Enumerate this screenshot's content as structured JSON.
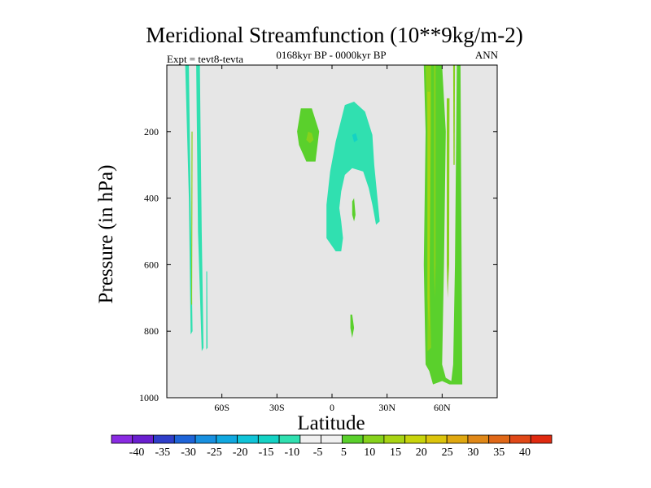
{
  "chart_data": {
    "type": "contour",
    "title": "Meridional Streamfunction (10**9kg/m-2)",
    "subtitle_left": "Expt = tevt8-tevta",
    "subtitle_center": "0168kyr BP - 0000kyr BP",
    "subtitle_right": "ANN",
    "xlabel": "Latitude",
    "ylabel": "Pressure (in hPa)",
    "xlim": [
      -90,
      90
    ],
    "ylim": [
      0,
      1000
    ],
    "y_inverted": true,
    "xticks": [
      {
        "value": -60,
        "label": "60S"
      },
      {
        "value": -30,
        "label": "30S"
      },
      {
        "value": 0,
        "label": "0"
      },
      {
        "value": 30,
        "label": "30N"
      },
      {
        "value": 60,
        "label": "60N"
      }
    ],
    "yticks": [
      {
        "value": 200,
        "label": "200"
      },
      {
        "value": 400,
        "label": "400"
      },
      {
        "value": 600,
        "label": "600"
      },
      {
        "value": 800,
        "label": "800"
      },
      {
        "value": 1000,
        "label": "1000"
      }
    ],
    "background_color": "#e6e6e6",
    "colorbar": {
      "colors": [
        "#8a2be2",
        "#6a1fd0",
        "#2f3ec9",
        "#1e64d8",
        "#1890e0",
        "#10a8e0",
        "#10c4d8",
        "#14d2c4",
        "#30e0b0",
        "#f0f0f0",
        "#f0f0f0",
        "#5ad02c",
        "#86d21c",
        "#a8d414",
        "#c8d40c",
        "#dcc40c",
        "#e0a810",
        "#e08818",
        "#e06818",
        "#e04818",
        "#e02a10"
      ],
      "labels": [
        "-40",
        "-35",
        "-30",
        "-25",
        "-20",
        "-15",
        "-10",
        "-5",
        "5",
        "10",
        "15",
        "20",
        "25",
        "30",
        "35",
        "40"
      ]
    },
    "regions": [
      {
        "level": -10,
        "color": "#30e0b0",
        "points": [
          [
            -80,
            0
          ],
          [
            -78,
            0
          ],
          [
            -77,
            400
          ],
          [
            -76,
            800
          ],
          [
            -77,
            810
          ],
          [
            -78,
            400
          ]
        ]
      },
      {
        "level": -10,
        "color": "#30e0b0",
        "points": [
          [
            -74,
            0
          ],
          [
            -72,
            0
          ],
          [
            -71,
            500
          ],
          [
            -70,
            850
          ],
          [
            -71,
            860
          ],
          [
            -73,
            500
          ]
        ]
      },
      {
        "level": -10,
        "color": "#30e0b0",
        "points": [
          [
            -68.5,
            620
          ],
          [
            -68,
            620
          ],
          [
            -67.8,
            850
          ],
          [
            -68.5,
            855
          ]
        ]
      },
      {
        "level": 10,
        "color": "#86d21c",
        "points": [
          [
            -76.5,
            200
          ],
          [
            -76,
            200
          ],
          [
            -76.2,
            720
          ],
          [
            -76.7,
            720
          ]
        ]
      },
      {
        "level": -10,
        "color": "#30e0b0",
        "points": [
          [
            7,
            120
          ],
          [
            12,
            110
          ],
          [
            18,
            140
          ],
          [
            22,
            210
          ],
          [
            23,
            300
          ],
          [
            26,
            470
          ],
          [
            24,
            480
          ],
          [
            22,
            420
          ],
          [
            20,
            370
          ],
          [
            17,
            320
          ],
          [
            11,
            310
          ],
          [
            7,
            330
          ],
          [
            5,
            380
          ],
          [
            4,
            430
          ],
          [
            5,
            470
          ],
          [
            6,
            520
          ],
          [
            5,
            560
          ],
          [
            2,
            560
          ],
          [
            -3,
            520
          ],
          [
            -3,
            420
          ],
          [
            -1,
            320
          ],
          [
            1,
            260
          ],
          [
            2,
            230
          ]
        ]
      },
      {
        "level": -15,
        "color": "#14d2c4",
        "points": [
          [
            11,
            210
          ],
          [
            13,
            205
          ],
          [
            14,
            225
          ],
          [
            12,
            232
          ]
        ]
      },
      {
        "level": 5,
        "color": "#5ad02c",
        "points": [
          [
            -17,
            130
          ],
          [
            -11,
            130
          ],
          [
            -7,
            200
          ],
          [
            -9,
            290
          ],
          [
            -14,
            290
          ],
          [
            -18,
            240
          ],
          [
            -19,
            200
          ]
        ]
      },
      {
        "level": 10,
        "color": "#86d21c",
        "points": [
          [
            -13,
            200
          ],
          [
            -11,
            205
          ],
          [
            -10,
            225
          ],
          [
            -12,
            235
          ],
          [
            -14,
            225
          ]
        ]
      },
      {
        "level": 5,
        "color": "#5ad02c",
        "points": [
          [
            11,
            410
          ],
          [
            12,
            400
          ],
          [
            12.8,
            450
          ],
          [
            12,
            470
          ],
          [
            11,
            450
          ]
        ]
      },
      {
        "level": 5,
        "color": "#5ad02c",
        "points": [
          [
            10,
            750
          ],
          [
            11,
            750
          ],
          [
            12,
            790
          ],
          [
            11,
            820
          ],
          [
            10,
            790
          ]
        ]
      },
      {
        "level": 5,
        "color": "#5ad02c",
        "points": [
          [
            50,
            0
          ],
          [
            60,
            0
          ],
          [
            62,
            200
          ],
          [
            61,
            600
          ],
          [
            60,
            900
          ],
          [
            62,
            940
          ],
          [
            65,
            950
          ],
          [
            66,
            900
          ],
          [
            67,
            600
          ],
          [
            68,
            0
          ],
          [
            70,
            0
          ],
          [
            71,
            960
          ],
          [
            64,
            960
          ],
          [
            60,
            950
          ],
          [
            55,
            960
          ],
          [
            53,
            920
          ],
          [
            51,
            900
          ],
          [
            50,
            600
          ],
          [
            51,
            200
          ]
        ]
      },
      {
        "level": 10,
        "color": "#86d21c",
        "points": [
          [
            51,
            0
          ],
          [
            54,
            0
          ],
          [
            54,
            200
          ],
          [
            53,
            600
          ],
          [
            54,
            850
          ],
          [
            52,
            860
          ],
          [
            52,
            600
          ],
          [
            52,
            200
          ]
        ]
      },
      {
        "level": 15,
        "color": "#a8d414",
        "points": [
          [
            52,
            80
          ],
          [
            53.5,
            80
          ],
          [
            53.5,
            400
          ],
          [
            53,
            800
          ],
          [
            52,
            700
          ],
          [
            52,
            300
          ]
        ]
      },
      {
        "level": 10,
        "color": "#86d21c",
        "points": [
          [
            55.5,
            0
          ],
          [
            56.5,
            0
          ],
          [
            56.5,
            600
          ],
          [
            56,
            700
          ],
          [
            55.5,
            600
          ]
        ]
      },
      {
        "level": 10,
        "color": "#86d21c",
        "points": [
          [
            62.5,
            100
          ],
          [
            64,
            100
          ],
          [
            63.8,
            600
          ],
          [
            63,
            700
          ],
          [
            62.5,
            600
          ]
        ]
      },
      {
        "level": 10,
        "color": "#86d21c",
        "points": [
          [
            66,
            0
          ],
          [
            67,
            0
          ],
          [
            66.8,
            300
          ],
          [
            66.2,
            300
          ]
        ]
      }
    ]
  }
}
